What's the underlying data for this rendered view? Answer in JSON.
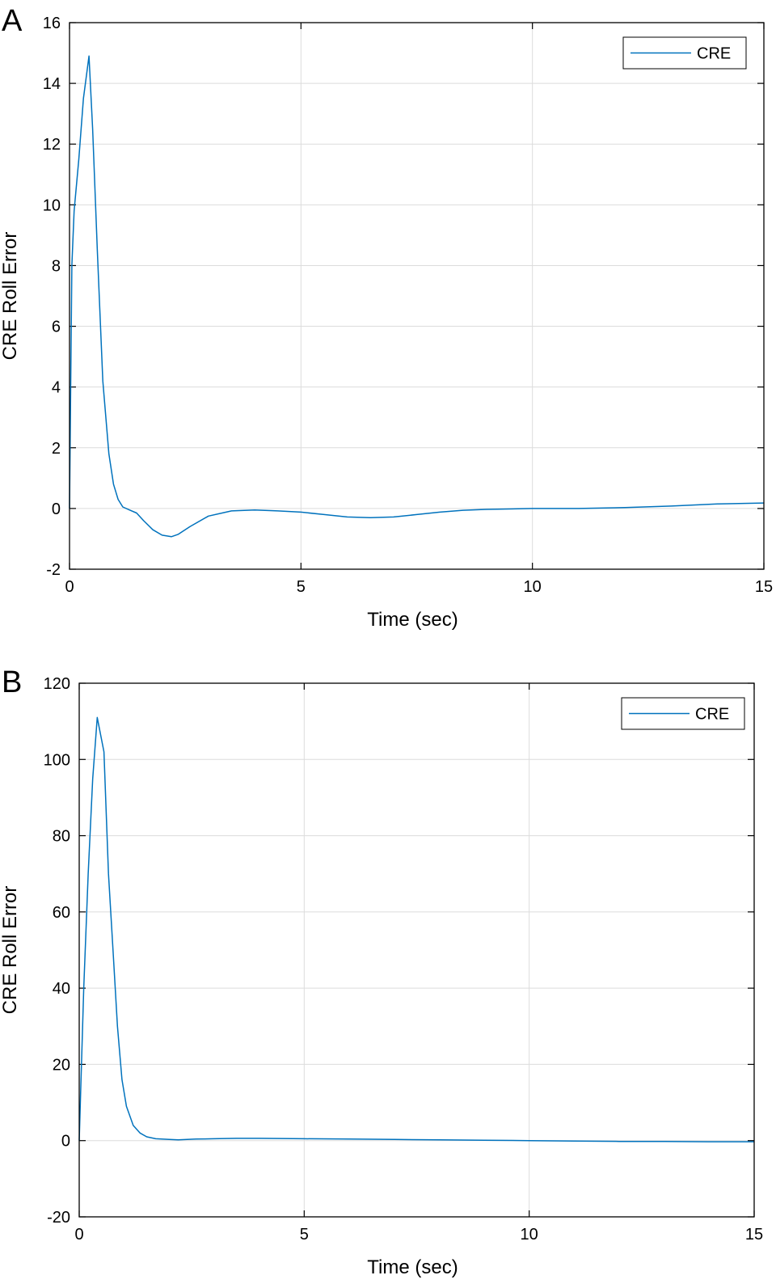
{
  "chart_data": [
    {
      "panel_label": "A",
      "type": "line",
      "xlabel": "Time (sec)",
      "ylabel": "CRE Roll Error",
      "xlim": [
        0,
        15
      ],
      "ylim": [
        -2,
        16
      ],
      "xticks": [
        0,
        5,
        10,
        15
      ],
      "yticks": [
        -2,
        0,
        2,
        4,
        6,
        8,
        10,
        12,
        14,
        16
      ],
      "grid": true,
      "legend_position": "top-right",
      "series": [
        {
          "name": "CRE",
          "color": "#0072BD",
          "x": [
            0,
            0.05,
            0.1,
            0.2,
            0.3,
            0.42,
            0.5,
            0.6,
            0.72,
            0.85,
            0.95,
            1.05,
            1.15,
            1.3,
            1.45,
            1.6,
            1.8,
            2.0,
            2.2,
            2.35,
            2.6,
            3.0,
            3.5,
            4.0,
            4.5,
            5.0,
            5.5,
            6.0,
            6.5,
            7.0,
            7.5,
            8.0,
            8.5,
            9.0,
            10.0,
            11.0,
            12.0,
            13.0,
            14.0,
            15.0
          ],
          "y": [
            0,
            8,
            9.8,
            11.5,
            13.5,
            14.9,
            12.5,
            8.5,
            4.2,
            1.8,
            0.8,
            0.3,
            0.05,
            -0.05,
            -0.15,
            -0.4,
            -0.7,
            -0.88,
            -0.93,
            -0.85,
            -0.6,
            -0.25,
            -0.08,
            -0.05,
            -0.08,
            -0.12,
            -0.2,
            -0.28,
            -0.3,
            -0.28,
            -0.2,
            -0.12,
            -0.06,
            -0.03,
            0.0,
            0.0,
            0.03,
            0.08,
            0.15,
            0.18
          ]
        }
      ]
    },
    {
      "panel_label": "B",
      "type": "line",
      "xlabel": "Time (sec)",
      "ylabel": "CRE Roll Error",
      "xlim": [
        0,
        15
      ],
      "ylim": [
        -20,
        120
      ],
      "xticks": [
        0,
        5,
        10,
        15
      ],
      "yticks": [
        -20,
        0,
        20,
        40,
        60,
        80,
        100,
        120
      ],
      "grid": true,
      "legend_position": "top-right",
      "series": [
        {
          "name": "CRE",
          "color": "#0072BD",
          "x": [
            0,
            0.1,
            0.2,
            0.3,
            0.4,
            0.55,
            0.65,
            0.75,
            0.85,
            0.95,
            1.05,
            1.2,
            1.35,
            1.5,
            1.7,
            2.0,
            2.2,
            2.6,
            3.0,
            3.5,
            4.0,
            5.0,
            6.0,
            7.0,
            8.0,
            9.0,
            10.0,
            11.0,
            12.0,
            13.0,
            14.0,
            15.0
          ],
          "y": [
            0,
            40,
            70,
            95,
            111,
            102,
            70,
            50,
            30,
            16,
            9,
            4,
            2,
            1,
            0.5,
            0.3,
            0.2,
            0.4,
            0.5,
            0.6,
            0.6,
            0.5,
            0.4,
            0.3,
            0.2,
            0.1,
            0.0,
            -0.1,
            -0.2,
            -0.2,
            -0.3,
            -0.3
          ]
        }
      ]
    }
  ]
}
